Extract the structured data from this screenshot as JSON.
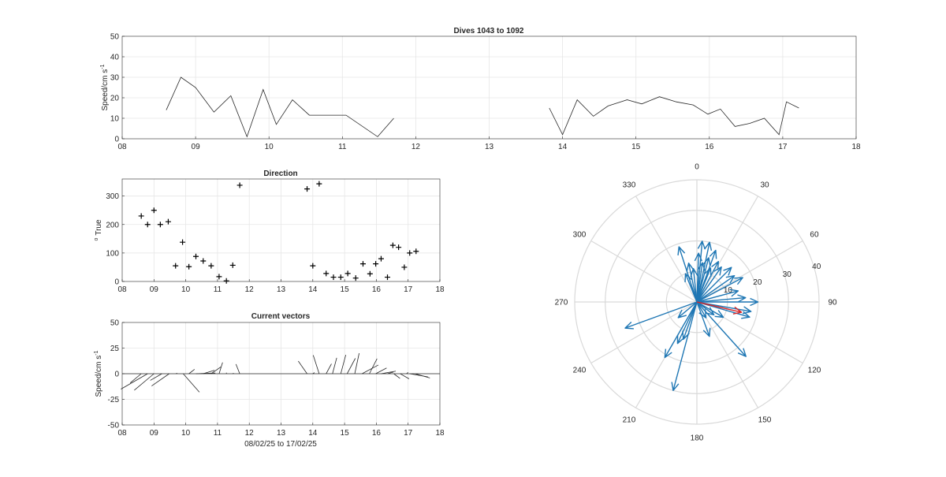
{
  "figure": {
    "background": "#ffffff",
    "axis_color": "#262626",
    "grid_color": "#e6e6e6",
    "polar_grid_color": "#d9d9d9"
  },
  "chart_data": [
    {
      "id": "speed",
      "type": "line",
      "title": "Dives 1043 to 1092",
      "xlabel": "",
      "ylabel": "Speed/cm s",
      "ylabel_superscript": "-1",
      "xlim": [
        8,
        18
      ],
      "ylim": [
        0,
        50
      ],
      "xticks": [
        8,
        9,
        10,
        11,
        12,
        13,
        14,
        15,
        16,
        17,
        18
      ],
      "xtick_labels": [
        "08",
        "09",
        "10",
        "11",
        "12",
        "13",
        "14",
        "15",
        "16",
        "17",
        "18"
      ],
      "yticks": [
        0,
        10,
        20,
        30,
        40,
        50
      ],
      "grid": true,
      "line_color": "#262626",
      "series": [
        {
          "x": [
            8.6,
            8.8,
            9.0,
            9.25,
            9.48,
            9.7,
            9.92,
            10.1,
            10.32,
            10.55,
            10.8,
            11.05,
            11.48,
            11.7
          ],
          "y": [
            14,
            30,
            25,
            13,
            21,
            1,
            24,
            7,
            19,
            11.5,
            11.5,
            11.5,
            1,
            10
          ]
        },
        {
          "x": [
            13.82,
            14.0,
            14.2,
            14.42,
            14.62,
            14.88,
            15.08,
            15.32,
            15.55,
            15.78,
            15.98,
            16.15,
            16.35,
            16.55,
            16.75,
            16.95,
            17.05,
            17.22
          ],
          "y": [
            15,
            2,
            19,
            11,
            16,
            19,
            17,
            20.5,
            18,
            16.5,
            12,
            14.5,
            6,
            7.5,
            10,
            2,
            18,
            15
          ]
        }
      ]
    },
    {
      "id": "direction",
      "type": "scatter",
      "title": "Direction",
      "xlabel": "",
      "ylabel": "True",
      "ylabel_prefix": "o",
      "xlim": [
        8,
        18
      ],
      "ylim": [
        0,
        360
      ],
      "xticks": [
        8,
        9,
        10,
        11,
        12,
        13,
        14,
        15,
        16,
        17,
        18
      ],
      "xtick_labels": [
        "08",
        "09",
        "10",
        "11",
        "12",
        "13",
        "14",
        "15",
        "16",
        "17",
        "18"
      ],
      "yticks": [
        0,
        100,
        200,
        300
      ],
      "grid": true,
      "marker": "+",
      "marker_color": "#000000",
      "x": [
        8.6,
        8.8,
        9.0,
        9.2,
        9.45,
        9.68,
        9.9,
        10.1,
        10.32,
        10.55,
        10.8,
        11.05,
        11.28,
        11.48,
        11.7,
        13.82,
        14.0,
        14.2,
        14.42,
        14.65,
        14.88,
        15.1,
        15.35,
        15.58,
        15.8,
        15.98,
        16.15,
        16.35,
        16.52,
        16.7,
        16.88,
        17.05,
        17.25
      ],
      "y": [
        230,
        200,
        250,
        200,
        210,
        55,
        138,
        52,
        88,
        72,
        55,
        17,
        2,
        57,
        338,
        325,
        55,
        343,
        28,
        15,
        15,
        28,
        12,
        62,
        27,
        62,
        80,
        15,
        127,
        120,
        50,
        100,
        106
      ]
    },
    {
      "id": "vectors",
      "type": "line",
      "title": "Current vectors",
      "xlabel": "08/02/25 to 17/02/25",
      "ylabel": "Speed/cm s",
      "ylabel_superscript": "-1",
      "xlim": [
        8,
        18
      ],
      "ylim": [
        -50,
        50
      ],
      "xticks": [
        8,
        9,
        10,
        11,
        12,
        13,
        14,
        15,
        16,
        17,
        18
      ],
      "xtick_labels": [
        "08",
        "09",
        "10",
        "11",
        "12",
        "13",
        "14",
        "15",
        "16",
        "17",
        "18"
      ],
      "yticks": [
        -50,
        -25,
        0,
        25,
        50
      ],
      "grid": true,
      "line_color": "#262626",
      "vectors": [
        {
          "x": 8.6,
          "u": -10.8,
          "v": -9.0
        },
        {
          "x": 8.8,
          "u": -26.0,
          "v": -15.0
        },
        {
          "x": 9.0,
          "u": -19.2,
          "v": -16.1
        },
        {
          "x": 9.25,
          "u": -11.3,
          "v": -6.5
        },
        {
          "x": 9.48,
          "u": -17.2,
          "v": -12.0
        },
        {
          "x": 9.7,
          "u": 0.8,
          "v": 0.6
        },
        {
          "x": 9.92,
          "u": 15.8,
          "v": -18.0
        },
        {
          "x": 10.1,
          "u": 5.5,
          "v": 4.3
        },
        {
          "x": 10.32,
          "u": 19.0,
          "v": 0.7
        },
        {
          "x": 10.55,
          "u": 11.0,
          "v": 3.4
        },
        {
          "x": 10.8,
          "u": 9.4,
          "v": 6.6
        },
        {
          "x": 11.05,
          "u": 3.4,
          "v": 11.0
        },
        {
          "x": 11.28,
          "u": 0.04,
          "v": 1.0
        },
        {
          "x": 11.48,
          "u": 0.84,
          "v": 0.54
        },
        {
          "x": 11.7,
          "u": -3.7,
          "v": 9.3
        },
        {
          "x": 13.82,
          "u": -8.6,
          "v": 12.3
        },
        {
          "x": 14.0,
          "u": 1.6,
          "v": 1.1
        },
        {
          "x": 14.2,
          "u": -5.8,
          "v": 18.1
        },
        {
          "x": 14.42,
          "u": 5.2,
          "v": 9.7
        },
        {
          "x": 14.62,
          "u": 4.1,
          "v": 15.5
        },
        {
          "x": 14.88,
          "u": 4.9,
          "v": 18.4
        },
        {
          "x": 15.08,
          "u": 8.0,
          "v": 15.0
        },
        {
          "x": 15.32,
          "u": 4.3,
          "v": 20.0
        },
        {
          "x": 15.55,
          "u": 15.9,
          "v": 8.5
        },
        {
          "x": 15.78,
          "u": 7.5,
          "v": 14.7
        },
        {
          "x": 15.98,
          "u": 10.6,
          "v": 5.6
        },
        {
          "x": 16.15,
          "u": 14.3,
          "v": 2.5
        },
        {
          "x": 16.35,
          "u": 5.8,
          "v": 1.6
        },
        {
          "x": 16.55,
          "u": 6.0,
          "v": -4.6
        },
        {
          "x": 16.75,
          "u": 8.7,
          "v": -5.0
        },
        {
          "x": 16.95,
          "u": 1.5,
          "v": 1.3
        },
        {
          "x": 17.05,
          "u": 17.7,
          "v": -3.1
        },
        {
          "x": 17.22,
          "u": 14.4,
          "v": -4.1
        }
      ]
    },
    {
      "id": "compass",
      "type": "line",
      "title": "",
      "polar": true,
      "theta_zero": "top",
      "theta_direction": "clockwise",
      "theta_ticks": [
        0,
        30,
        60,
        90,
        120,
        150,
        180,
        210,
        240,
        270,
        300,
        330
      ],
      "r_ticks": [
        10,
        20,
        30,
        40
      ],
      "r_tick_angle": 75,
      "rlim": [
        0,
        40
      ],
      "arrow_color": "#1f77b4",
      "mean_arrow_color": "#d62728",
      "arrows": [
        {
          "angle": 5,
          "r": 20
        },
        {
          "angle": 12,
          "r": 20
        },
        {
          "angle": 20,
          "r": 18
        },
        {
          "angle": 28,
          "r": 15
        },
        {
          "angle": 35,
          "r": 14
        },
        {
          "angle": 45,
          "r": 16
        },
        {
          "angle": 55,
          "r": 15
        },
        {
          "angle": 62,
          "r": 17
        },
        {
          "angle": 75,
          "r": 14
        },
        {
          "angle": 85,
          "r": 16
        },
        {
          "angle": 90,
          "r": 20
        },
        {
          "angle": 100,
          "r": 18
        },
        {
          "angle": 106,
          "r": 18
        },
        {
          "angle": 120,
          "r": 10
        },
        {
          "angle": 127,
          "r": 7
        },
        {
          "angle": 138,
          "r": 24
        },
        {
          "angle": 150,
          "r": 6
        },
        {
          "angle": 160,
          "r": 12
        },
        {
          "angle": 195,
          "r": 30
        },
        {
          "angle": 200,
          "r": 13
        },
        {
          "angle": 205,
          "r": 15
        },
        {
          "angle": 210,
          "r": 21
        },
        {
          "angle": 230,
          "r": 8
        },
        {
          "angle": 250,
          "r": 25
        },
        {
          "angle": 338,
          "r": 10
        },
        {
          "angle": 342,
          "r": 19
        },
        {
          "angle": 348,
          "r": 13
        },
        {
          "angle": 354,
          "r": 11
        },
        {
          "angle": 2,
          "r": 16
        },
        {
          "angle": 8,
          "r": 13
        },
        {
          "angle": 15,
          "r": 15
        },
        {
          "angle": 22,
          "r": 12
        }
      ],
      "mean_arrow": {
        "angle": 103,
        "r": 15
      }
    }
  ]
}
